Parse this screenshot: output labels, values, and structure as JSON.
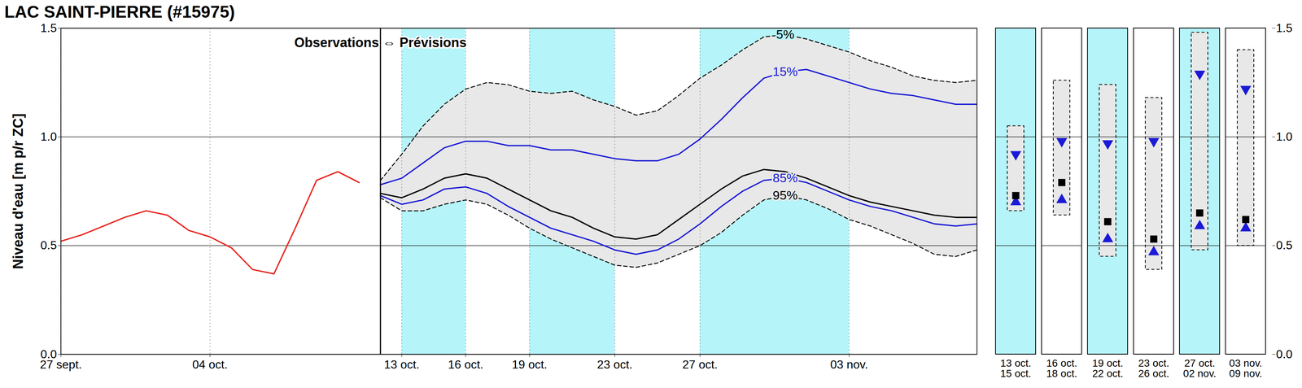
{
  "chart_data": [
    {
      "type": "line",
      "title": "LAC SAINT-PIERRE (#15975)",
      "y_label": "Niveau d'eau [m p/r ZC]",
      "annotation": "Observations ⇔ Prévisions",
      "x": [
        0,
        1,
        2,
        3,
        4,
        5,
        6,
        7,
        8,
        9,
        10,
        11,
        12,
        13,
        14,
        15,
        16,
        17,
        18,
        19,
        20,
        21,
        22,
        23,
        24,
        25,
        26,
        27,
        28,
        29,
        30,
        31,
        32,
        33,
        34,
        35,
        36,
        37,
        38,
        39,
        40,
        41,
        42,
        43
      ],
      "xlim": [
        0,
        43
      ],
      "xticks": [
        {
          "value": 0,
          "label": "27 sept."
        },
        {
          "value": 7,
          "label": "04 oct."
        },
        {
          "value": 16,
          "label": "13 oct."
        },
        {
          "value": 19,
          "label": "16 oct."
        },
        {
          "value": 22,
          "label": "19 oct."
        },
        {
          "value": 26,
          "label": "23 oct."
        },
        {
          "value": 30,
          "label": "27 oct."
        },
        {
          "value": 37,
          "label": "03 nov."
        }
      ],
      "ylim": [
        0,
        1.5
      ],
      "yticks": [
        {
          "value": 0,
          "label": "0.0"
        },
        {
          "value": 0.5,
          "label": "0.5"
        },
        {
          "value": 1,
          "label": "1.0"
        },
        {
          "value": 1.5,
          "label": "1.5"
        }
      ],
      "grid": true,
      "shaded_periods": [
        [
          16,
          19
        ],
        [
          22,
          26
        ],
        [
          30,
          37
        ]
      ],
      "series": [
        {
          "color": "#e8211a",
          "values": [
            0.52,
            0.55,
            0.59,
            0.63,
            0.66,
            0.64,
            0.57,
            0.54,
            0.49,
            0.39,
            0.37,
            0.58,
            0.8,
            0.84,
            0.79,
            null,
            null,
            null,
            null,
            null,
            null,
            null,
            null,
            null,
            null,
            null,
            null,
            null,
            null,
            null,
            null,
            null,
            null,
            null,
            null,
            null,
            null,
            null,
            null,
            null,
            null,
            null,
            null,
            null
          ]
        },
        {
          "name": "5%",
          "color": "#000000",
          "line_style": "dashed",
          "values": [
            null,
            null,
            null,
            null,
            null,
            null,
            null,
            null,
            null,
            null,
            null,
            null,
            null,
            null,
            null,
            0.8,
            0.92,
            1.05,
            1.15,
            1.22,
            1.25,
            1.24,
            1.21,
            1.2,
            1.21,
            1.17,
            1.14,
            1.1,
            1.12,
            1.19,
            1.27,
            1.33,
            1.4,
            1.46,
            1.47,
            1.45,
            1.42,
            1.39,
            1.35,
            1.32,
            1.28,
            1.26,
            1.25,
            1.26
          ]
        },
        {
          "name": "15%",
          "color": "#1a1ad6",
          "values": [
            null,
            null,
            null,
            null,
            null,
            null,
            null,
            null,
            null,
            null,
            null,
            null,
            null,
            null,
            null,
            0.78,
            0.81,
            0.88,
            0.95,
            0.98,
            0.98,
            0.96,
            0.96,
            0.94,
            0.94,
            0.92,
            0.9,
            0.89,
            0.89,
            0.92,
            0.99,
            1.08,
            1.18,
            1.27,
            1.3,
            1.31,
            1.28,
            1.25,
            1.22,
            1.2,
            1.19,
            1.17,
            1.15,
            1.15
          ]
        },
        {
          "color": "#000000",
          "values": [
            null,
            null,
            null,
            null,
            null,
            null,
            null,
            null,
            null,
            null,
            null,
            null,
            null,
            null,
            null,
            0.74,
            0.72,
            0.76,
            0.81,
            0.83,
            0.81,
            0.76,
            0.71,
            0.66,
            0.63,
            0.58,
            0.54,
            0.53,
            0.55,
            0.62,
            0.69,
            0.76,
            0.82,
            0.85,
            0.84,
            0.81,
            0.77,
            0.73,
            0.7,
            0.68,
            0.66,
            0.64,
            0.63,
            0.63
          ]
        },
        {
          "name": "85%",
          "color": "#1a1ad6",
          "values": [
            null,
            null,
            null,
            null,
            null,
            null,
            null,
            null,
            null,
            null,
            null,
            null,
            null,
            null,
            null,
            0.73,
            0.69,
            0.71,
            0.76,
            0.77,
            0.74,
            0.68,
            0.63,
            0.58,
            0.55,
            0.52,
            0.48,
            0.46,
            0.48,
            0.53,
            0.6,
            0.68,
            0.75,
            0.8,
            0.81,
            0.79,
            0.75,
            0.71,
            0.68,
            0.66,
            0.63,
            0.6,
            0.59,
            0.6
          ]
        },
        {
          "name": "95%",
          "color": "#000000",
          "line_style": "dashed",
          "values": [
            null,
            null,
            null,
            null,
            null,
            null,
            null,
            null,
            null,
            null,
            null,
            null,
            null,
            null,
            null,
            0.72,
            0.66,
            0.66,
            0.69,
            0.71,
            0.69,
            0.64,
            0.58,
            0.53,
            0.49,
            0.45,
            0.41,
            0.4,
            0.42,
            0.46,
            0.5,
            0.56,
            0.64,
            0.71,
            0.73,
            0.71,
            0.67,
            0.62,
            0.59,
            0.55,
            0.51,
            0.46,
            0.45,
            0.48
          ]
        }
      ]
    },
    {
      "type": "range",
      "categories": [
        "13 oct.\n15 oct.",
        "16 oct.\n18 oct.",
        "19 oct.\n22 oct.",
        "23 oct.\n26 oct.",
        "27 oct.\n02 nov.",
        "03 nov.\n09 nov."
      ],
      "shaded": [
        true,
        false,
        true,
        false,
        true,
        false
      ],
      "ylim": [
        0,
        1.5
      ],
      "yticks": [
        {
          "value": 0,
          "label": "0.0"
        },
        {
          "value": 0.5,
          "label": "0.5"
        },
        {
          "value": 1,
          "label": "1.0"
        },
        {
          "value": 1.5,
          "label": "1.5"
        }
      ],
      "series": [
        {
          "color": "#000000",
          "line_style": "dashed",
          "values": [
            1.05,
            1.26,
            1.24,
            1.18,
            1.48,
            1.4
          ]
        },
        {
          "color": "#000000",
          "line_style": "dashed",
          "values": [
            0.66,
            0.64,
            0.45,
            0.39,
            0.48,
            0.5
          ]
        },
        {
          "color": "#1a1ad6",
          "marker": "triangle-down",
          "values": [
            0.92,
            0.98,
            0.97,
            0.98,
            1.29,
            1.22
          ]
        },
        {
          "color": "#1a1ad6",
          "marker": "triangle-up",
          "values": [
            0.7,
            0.71,
            0.53,
            0.47,
            0.59,
            0.58
          ]
        },
        {
          "color": "#000000",
          "marker": "square",
          "values": [
            0.73,
            0.79,
            0.61,
            0.53,
            0.65,
            0.62
          ]
        }
      ]
    }
  ]
}
